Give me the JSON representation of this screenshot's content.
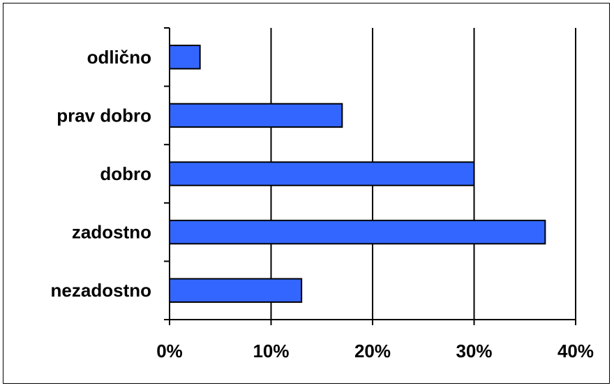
{
  "chart_data": {
    "type": "bar",
    "orientation": "horizontal",
    "categories": [
      "odlično",
      "prav dobro",
      "dobro",
      "zadostno",
      "nezadostno"
    ],
    "values": [
      3,
      17,
      30,
      37,
      13
    ],
    "xlim": [
      0,
      40
    ],
    "xticks": [
      0,
      10,
      20,
      30,
      40
    ],
    "tick_labels": [
      "0%",
      "10%",
      "20%",
      "30%",
      "40%"
    ],
    "title": "",
    "xlabel": "",
    "ylabel": "",
    "grid": "vertical",
    "legend": "none",
    "bar_color": "#3366FF",
    "bar_edge_color": "#000000"
  }
}
